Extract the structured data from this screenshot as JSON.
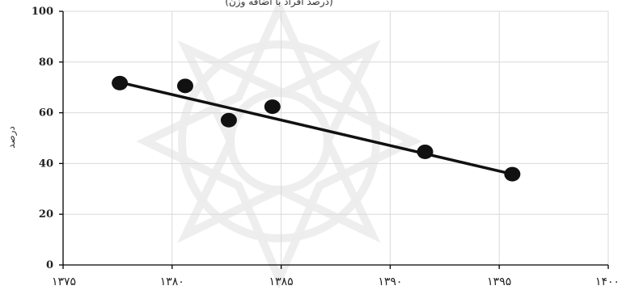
{
  "chart_data": {
    "type": "scatter",
    "title": "(درصد افراد با اضافه وزن)",
    "xlabel": "",
    "ylabel": "درصد",
    "xlim": [
      1375,
      1400
    ],
    "ylim": [
      0,
      100
    ],
    "x_ticks": [
      1375,
      1380,
      1385,
      1390,
      1395,
      1400
    ],
    "x_tick_labels": [
      "۱۳۷۵",
      "۱۳۸۰",
      "۱۳۸۵",
      "۱۳۹۰",
      "۱۳۹۵",
      "۱۴۰۰"
    ],
    "y_ticks": [
      0,
      20,
      40,
      60,
      80,
      100
    ],
    "y_tick_labels": [
      "0",
      "20",
      "40",
      "60",
      "80",
      "100"
    ],
    "grid": true,
    "series": [
      {
        "points": [
          {
            "x": 1377.6,
            "y": 71.7
          },
          {
            "x": 1380.6,
            "y": 70.6
          },
          {
            "x": 1382.6,
            "y": 57.1
          },
          {
            "x": 1384.6,
            "y": 62.4
          },
          {
            "x": 1391.6,
            "y": 44.6
          },
          {
            "x": 1395.6,
            "y": 35.8
          }
        ]
      }
    ],
    "trendline": {
      "type": "linear",
      "from": {
        "x": 1377.6,
        "y": 72.0
      },
      "to": {
        "x": 1395.6,
        "y": 35.8
      }
    }
  }
}
